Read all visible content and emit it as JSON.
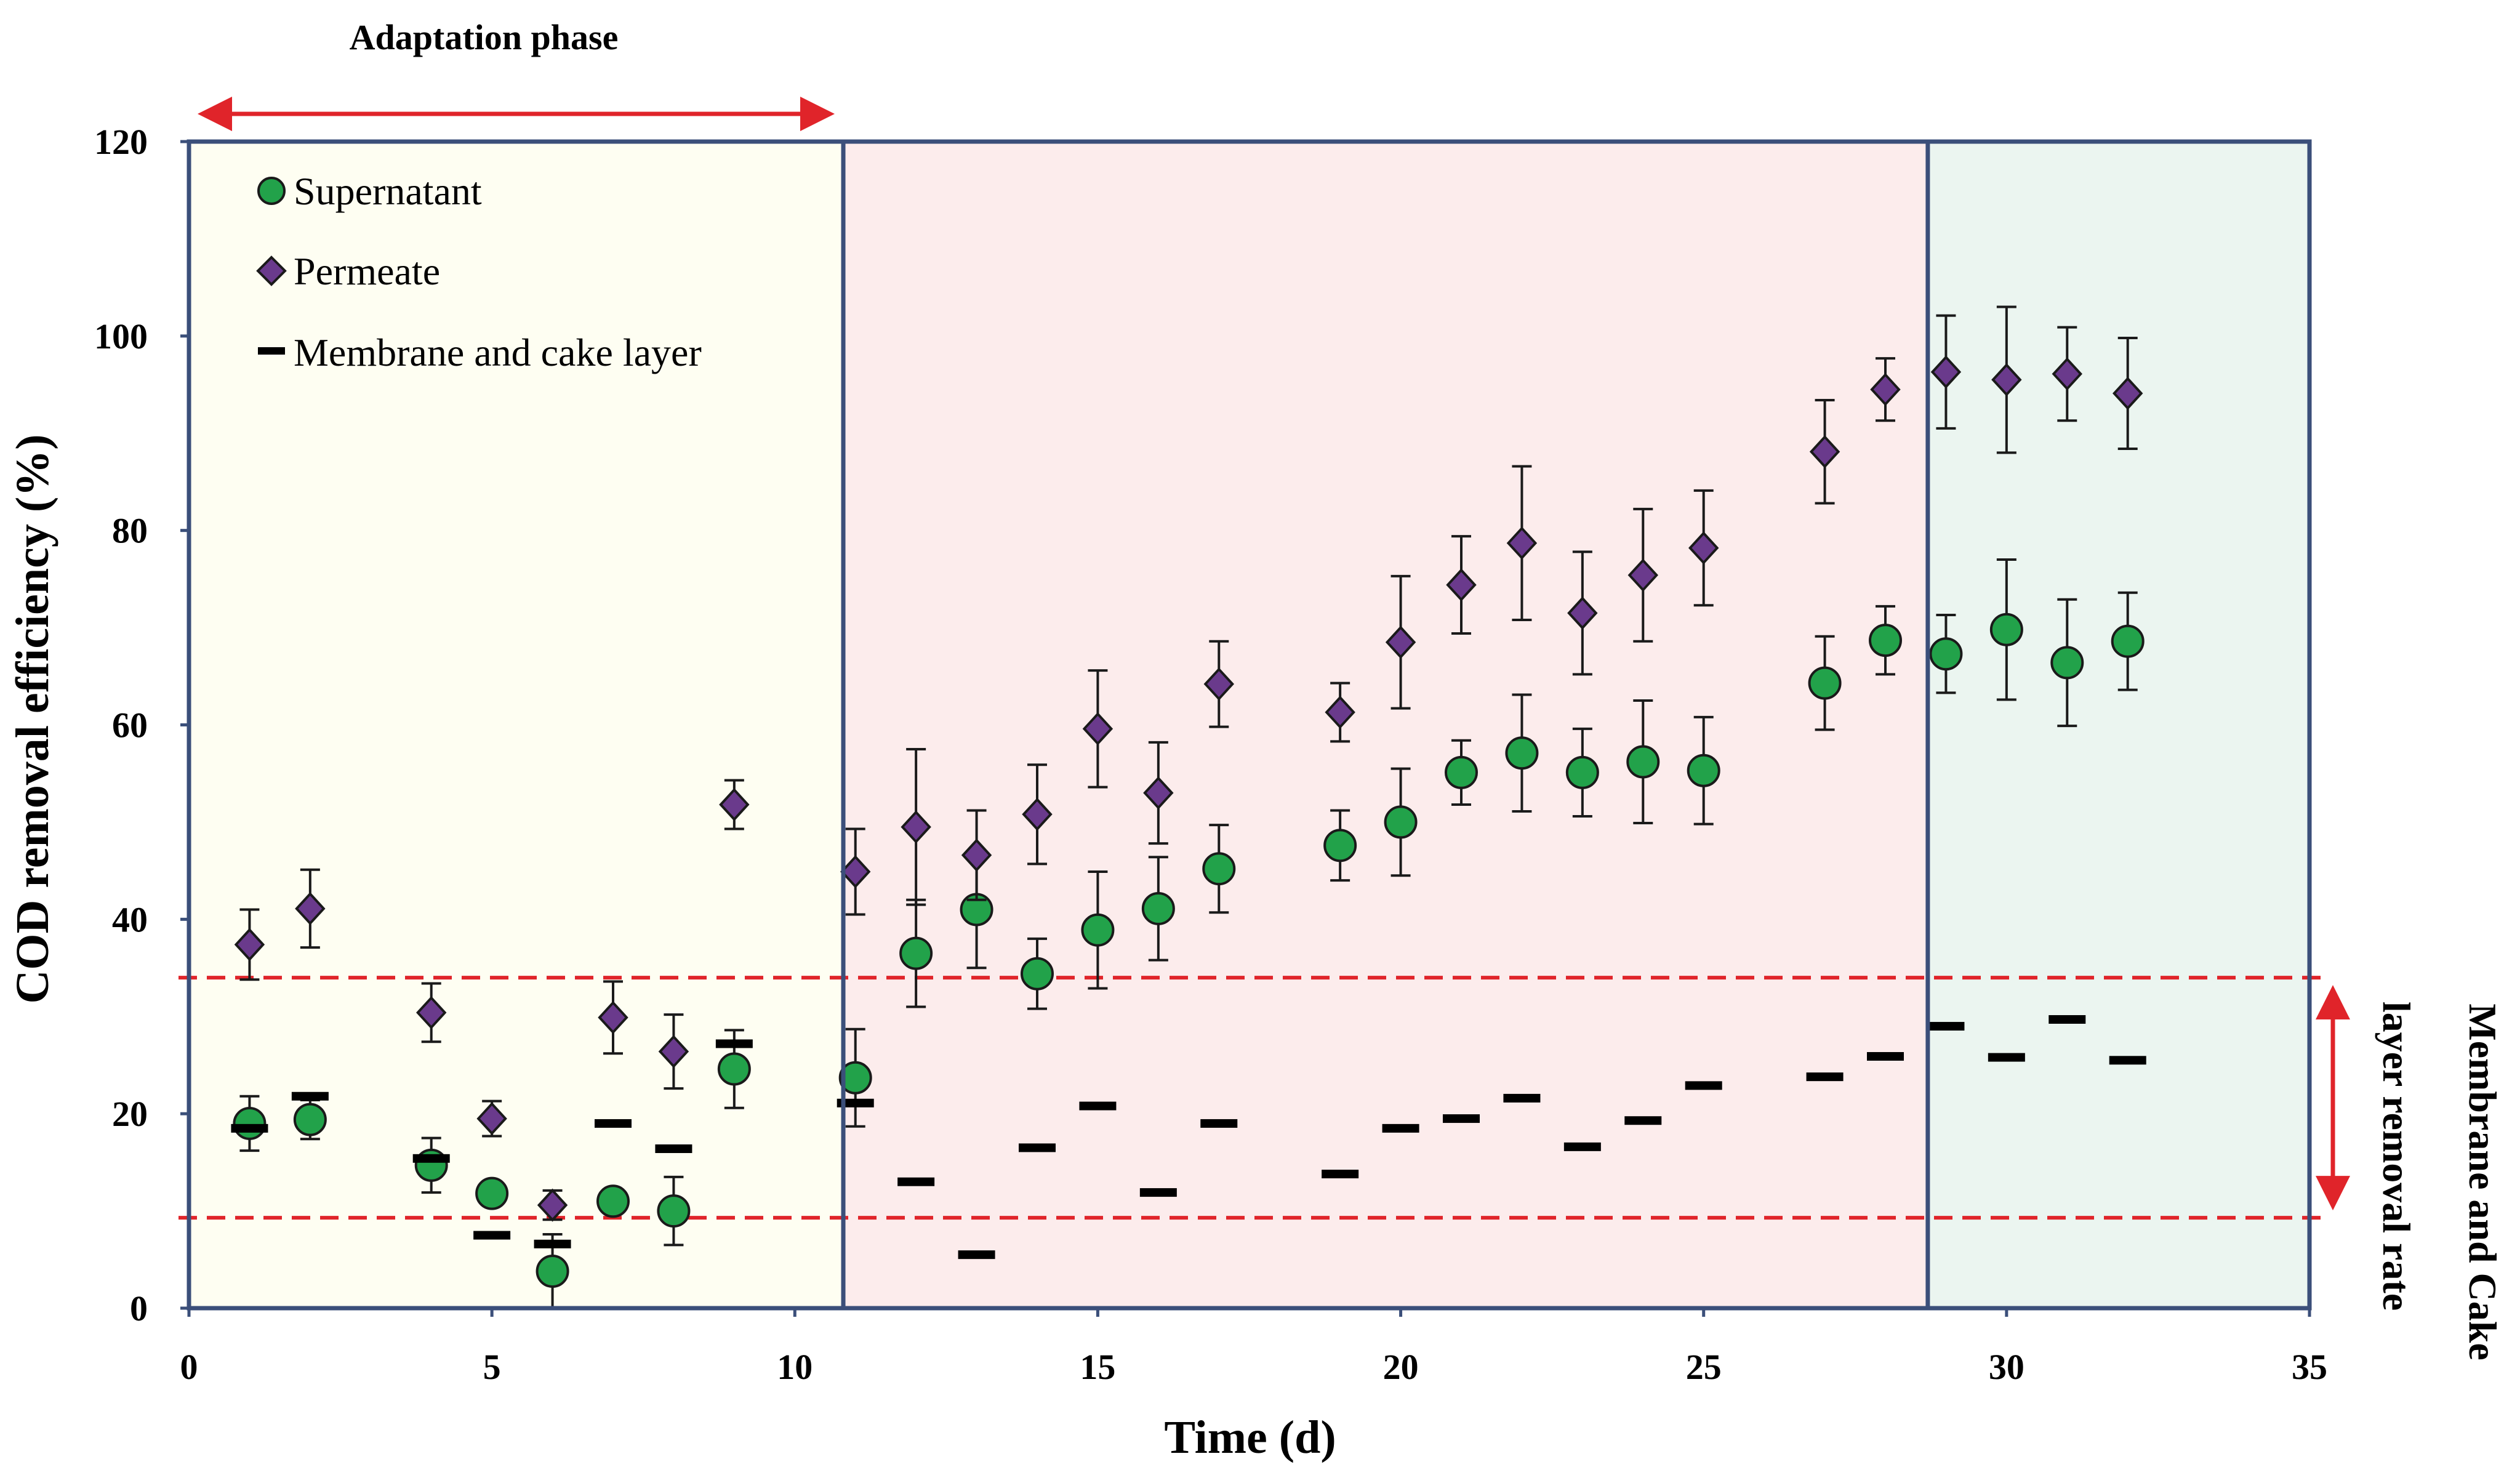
{
  "chart_data": {
    "type": "scatter",
    "title": "",
    "xlabel": "Time (d)",
    "ylabel": "COD removal efficiency (%)",
    "xlim": [
      0,
      35
    ],
    "ylim": [
      0,
      120
    ],
    "xticks": [
      0,
      5,
      10,
      15,
      20,
      25,
      30,
      35
    ],
    "yticks": [
      0,
      20,
      40,
      60,
      80,
      100,
      120
    ],
    "phases": [
      {
        "start": 0,
        "end": 10.8,
        "color": "#fefef2"
      },
      {
        "start": 10.8,
        "end": 28.7,
        "color": "#fcecec"
      },
      {
        "start": 28.7,
        "end": 35,
        "color": "#ebf5f0"
      }
    ],
    "series": [
      {
        "name": "Supernatant",
        "marker": "circle",
        "color": "#22a24a",
        "points": [
          {
            "x": 1,
            "y": 19,
            "err": 2.8
          },
          {
            "x": 2,
            "y": 19.4,
            "err": 2
          },
          {
            "x": 4,
            "y": 14.7,
            "err": 2.8
          },
          {
            "x": 5,
            "y": 11.8,
            "err": 1.2
          },
          {
            "x": 6,
            "y": 3.8,
            "err": 3.8
          },
          {
            "x": 7,
            "y": 11,
            "err": 1.2
          },
          {
            "x": 8,
            "y": 10,
            "err": 3.5
          },
          {
            "x": 9,
            "y": 24.6,
            "err": 4
          },
          {
            "x": 11,
            "y": 23.7,
            "err": 5
          },
          {
            "x": 12,
            "y": 36.5,
            "err": 5.5
          },
          {
            "x": 13,
            "y": 41,
            "err": 6
          },
          {
            "x": 14,
            "y": 34.4,
            "err": 3.6
          },
          {
            "x": 15,
            "y": 38.9,
            "err": 6
          },
          {
            "x": 16,
            "y": 41.1,
            "err": 5.3
          },
          {
            "x": 17,
            "y": 45.2,
            "err": 4.5
          },
          {
            "x": 19,
            "y": 47.6,
            "err": 3.6
          },
          {
            "x": 20,
            "y": 50,
            "err": 5.5
          },
          {
            "x": 21,
            "y": 55.1,
            "err": 3.3
          },
          {
            "x": 22,
            "y": 57.1,
            "err": 6
          },
          {
            "x": 23,
            "y": 55.1,
            "err": 4.5
          },
          {
            "x": 24,
            "y": 56.2,
            "err": 6.3
          },
          {
            "x": 25,
            "y": 55.3,
            "err": 5.5
          },
          {
            "x": 27,
            "y": 64.3,
            "err": 4.8
          },
          {
            "x": 28,
            "y": 68.7,
            "err": 3.5
          },
          {
            "x": 29,
            "y": 67.3,
            "err": 4
          },
          {
            "x": 30,
            "y": 69.8,
            "err": 7.2
          },
          {
            "x": 31,
            "y": 66.4,
            "err": 6.5
          },
          {
            "x": 32,
            "y": 68.6,
            "err": 5
          }
        ]
      },
      {
        "name": "Permeate",
        "marker": "diamond",
        "color": "#6a3a8c",
        "points": [
          {
            "x": 1,
            "y": 37.4,
            "err": 3.6
          },
          {
            "x": 2,
            "y": 41.1,
            "err": 4
          },
          {
            "x": 4,
            "y": 30.4,
            "err": 3
          },
          {
            "x": 5,
            "y": 19.5,
            "err": 1.8
          },
          {
            "x": 6,
            "y": 10.6,
            "err": 1.5
          },
          {
            "x": 7,
            "y": 29.9,
            "err": 3.7
          },
          {
            "x": 8,
            "y": 26.4,
            "err": 3.8
          },
          {
            "x": 9,
            "y": 51.8,
            "err": 2.5
          },
          {
            "x": 11,
            "y": 44.9,
            "err": 4.4
          },
          {
            "x": 12,
            "y": 49.5,
            "err": 8
          },
          {
            "x": 13,
            "y": 46.6,
            "err": 4.6
          },
          {
            "x": 14,
            "y": 50.8,
            "err": 5.1
          },
          {
            "x": 15,
            "y": 59.6,
            "err": 6
          },
          {
            "x": 16,
            "y": 53,
            "err": 5.2
          },
          {
            "x": 17,
            "y": 64.2,
            "err": 4.4
          },
          {
            "x": 19,
            "y": 61.3,
            "err": 3
          },
          {
            "x": 20,
            "y": 68.5,
            "err": 6.8
          },
          {
            "x": 21,
            "y": 74.4,
            "err": 5
          },
          {
            "x": 22,
            "y": 78.7,
            "err": 7.9
          },
          {
            "x": 23,
            "y": 71.5,
            "err": 6.3
          },
          {
            "x": 24,
            "y": 75.4,
            "err": 6.8
          },
          {
            "x": 25,
            "y": 78.2,
            "err": 5.9
          },
          {
            "x": 27,
            "y": 88.1,
            "err": 5.3
          },
          {
            "x": 28,
            "y": 94.5,
            "err": 3.2
          },
          {
            "x": 29,
            "y": 96.3,
            "err": 5.8
          },
          {
            "x": 30,
            "y": 95.5,
            "err": 7.5
          },
          {
            "x": 31,
            "y": 96.1,
            "err": 4.8
          },
          {
            "x": 32,
            "y": 94.1,
            "err": 5.7
          }
        ]
      },
      {
        "name": "Membrane and cake  layer",
        "marker": "dash",
        "color": "#000000",
        "points": [
          {
            "x": 1,
            "y": 18.5
          },
          {
            "x": 2,
            "y": 21.8
          },
          {
            "x": 4,
            "y": 15.4
          },
          {
            "x": 5,
            "y": 7.5
          },
          {
            "x": 6,
            "y": 6.6
          },
          {
            "x": 7,
            "y": 19
          },
          {
            "x": 8,
            "y": 16.4
          },
          {
            "x": 9,
            "y": 27.2
          },
          {
            "x": 11,
            "y": 21.1
          },
          {
            "x": 12,
            "y": 13
          },
          {
            "x": 13,
            "y": 5.5
          },
          {
            "x": 14,
            "y": 16.5
          },
          {
            "x": 15,
            "y": 20.8
          },
          {
            "x": 16,
            "y": 11.9
          },
          {
            "x": 17,
            "y": 19
          },
          {
            "x": 19,
            "y": 13.8
          },
          {
            "x": 20,
            "y": 18.5
          },
          {
            "x": 21,
            "y": 19.5
          },
          {
            "x": 22,
            "y": 21.6
          },
          {
            "x": 23,
            "y": 16.6
          },
          {
            "x": 24,
            "y": 19.3
          },
          {
            "x": 25,
            "y": 22.9
          },
          {
            "x": 27,
            "y": 23.8
          },
          {
            "x": 28,
            "y": 25.9
          },
          {
            "x": 29,
            "y": 29
          },
          {
            "x": 30,
            "y": 25.8
          },
          {
            "x": 31,
            "y": 29.7
          },
          {
            "x": 32,
            "y": 25.5
          }
        ]
      }
    ],
    "reference_lines": [
      {
        "y": 34,
        "color": "#e0242a",
        "style": "dashed"
      },
      {
        "y": 9.3,
        "color": "#e0242a",
        "style": "dashed"
      }
    ],
    "annotations": {
      "adaptation_phase": {
        "label": "Adaptation phase",
        "x_start": 0,
        "x_end": 10.8,
        "color": "#e0242a"
      },
      "membrane_range": {
        "line1": "Membrane and Cake",
        "line2": "layer removal rate",
        "y_start": 9.3,
        "y_end": 34,
        "color": "#e0242a"
      }
    }
  }
}
